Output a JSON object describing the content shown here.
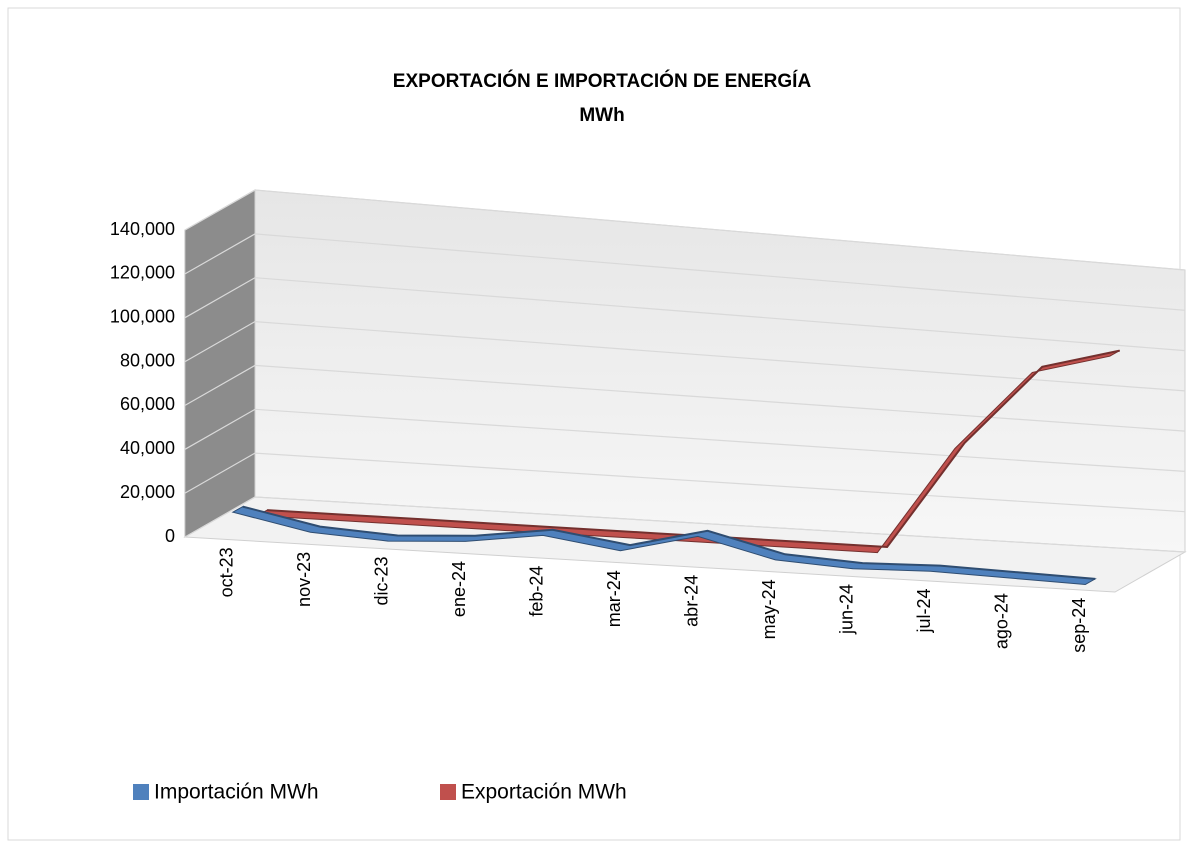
{
  "chart_data": {
    "type": "line3d",
    "title": "EXPORTACIÓN  E  IMPORTACIÓN  DE  ENERGÍA",
    "subtitle": "MWh",
    "categories": [
      "oct-23",
      "nov-23",
      "dic-23",
      "ene-24",
      "feb-24",
      "mar-24",
      "abr-24",
      "may-24",
      "jun-24",
      "jul-24",
      "ago-24",
      "sep-24"
    ],
    "series": [
      {
        "name": "Importación MWh",
        "color": "#4f81bd",
        "values": [
          10000,
          3000,
          1000,
          3000,
          8000,
          3000,
          12000,
          3000,
          1000,
          2000,
          1000,
          0
        ]
      },
      {
        "name": "Exportación MWh",
        "color": "#c0504d",
        "values": [
          2000,
          2000,
          2000,
          2000,
          2000,
          2000,
          2000,
          2000,
          2000,
          55000,
          95000,
          106000
        ]
      }
    ],
    "ylim": [
      0,
      140000
    ],
    "yticks": [
      0,
      {
        "value": 20000,
        "label": "20,000"
      },
      {
        "value": 40000,
        "label": "40,000"
      },
      {
        "value": 60000,
        "label": "60,000"
      },
      {
        "value": 80000,
        "label": "80,000"
      },
      {
        "value": 100000,
        "label": "100,000"
      },
      {
        "value": 120000,
        "label": "120,000"
      },
      {
        "value": 140000,
        "label": "140,000"
      }
    ],
    "grid": true
  }
}
